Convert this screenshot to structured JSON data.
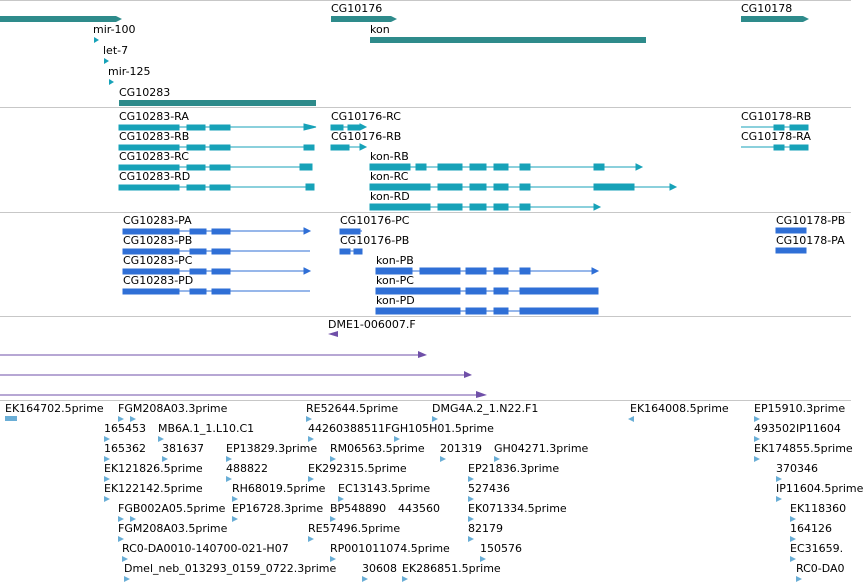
{
  "colors": {
    "gene": "#2e8b8b",
    "transcript": "#17a2b8",
    "protein": "#2f6fd6",
    "probe": "#6f4fa8",
    "est": "#6aaed6",
    "separator": "#c7c7c7"
  },
  "tracks": {
    "genes": {
      "labels": [
        "CG10176",
        "CG10178",
        "mir-100",
        "kon",
        "let-7",
        "mir-125",
        "CG10283"
      ]
    },
    "transcripts": {
      "labels": [
        "CG10283-RA",
        "CG10176-RC",
        "CG10178-RB",
        "CG10283-RB",
        "CG10176-RB",
        "CG10178-RA",
        "CG10283-RC",
        "kon-RB",
        "CG10283-RD",
        "kon-RC",
        "kon-RD"
      ]
    },
    "proteins": {
      "labels": [
        "CG10283-PA",
        "CG10176-PC",
        "CG10178-PB",
        "CG10283-PB",
        "CG10176-PB",
        "CG10178-PA",
        "CG10283-PC",
        "kon-PB",
        "CG10283-PD",
        "kon-PC",
        "kon-PD"
      ]
    },
    "probes": {
      "labels": [
        "DME1-006007.F"
      ]
    },
    "ests": {
      "labels": [
        "EK164702.5prime",
        "FGM208A03.3prime",
        "RE52644.5prime",
        "DMG4A.2_1.N22.F1",
        "EK164008.5prime",
        "EP15910.3prime",
        "165453",
        "MB6A.1_1.L10.C1",
        "44260388511FGH105H01.5prime",
        "493502IP11604",
        "165362",
        "381637",
        "EP13829.3prime",
        "RM06563.5prime",
        "201319",
        "GH04271.3prime",
        "EK174855.5prime",
        "EK121826.5prime",
        "488822",
        "EK292315.5prime",
        "EP21836.3prime",
        "370346",
        "EK122142.5prime",
        "RH68019.5prime",
        "EC13143.5prime",
        "527436",
        "IP11604.5prime",
        "FGB002A05.5prime",
        "EP16728.3prime",
        "BP548890",
        "443560",
        "EK071334.5prime",
        "EK118360",
        "FGM208A03.5prime",
        "RE57496.5prime",
        "82179",
        "164126",
        "RC0-DA0010-140700-021-H07",
        "RP001011074.5prime",
        "150576",
        "EC31659.",
        "Dmel_neb_013293_0159_0722.3prime",
        "30608",
        "EK286851.5prime",
        "RC0-DA0"
      ]
    }
  }
}
